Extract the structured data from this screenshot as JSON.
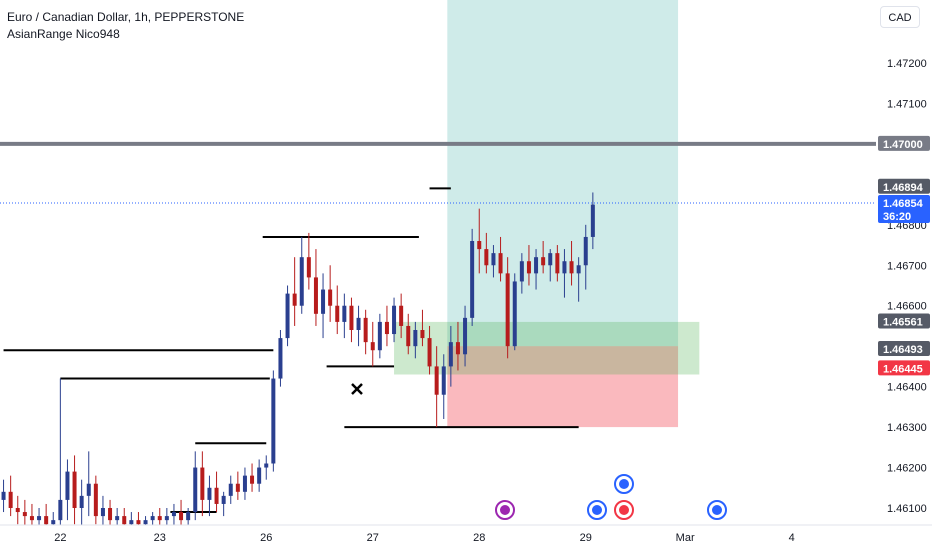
{
  "header": {
    "title": "Euro / Canadian Dollar, 1h, PEPPERSTONE",
    "indicator": "AsianRange Nico948"
  },
  "currency_button": "CAD",
  "colors": {
    "bull": "#2a3f8f",
    "bear": "#b71c1c",
    "target_zone": "#26a69a",
    "stop_zone": "#f23645",
    "accent": "#2962ff"
  },
  "chart_data": {
    "type": "candlestick",
    "title": "Euro / Canadian Dollar, 1h, PEPPERSTONE",
    "ylim": [
      1.4605,
      1.474
    ],
    "y_ticks": [
      "1.47200",
      "1.47100",
      "1.47000",
      "1.46800",
      "1.46700",
      "1.46600",
      "1.46400",
      "1.46300",
      "1.46200",
      "1.46100"
    ],
    "x_ticks": [
      {
        "label": "22",
        "slot": 8
      },
      {
        "label": "23",
        "slot": 22
      },
      {
        "label": "26",
        "slot": 37
      },
      {
        "label": "27",
        "slot": 52
      },
      {
        "label": "28",
        "slot": 67
      },
      {
        "label": "29",
        "slot": 82
      },
      {
        "label": "Mar",
        "slot": 96
      },
      {
        "label": "4",
        "slot": 111
      }
    ],
    "price_badges": [
      {
        "id": "level",
        "label": "1.47000",
        "price": 1.47,
        "bg": "#787b86"
      },
      {
        "id": "prev-high",
        "label": "1.46894",
        "price": 1.46894,
        "bg": "#555a66"
      },
      {
        "id": "last",
        "label": "1.46854",
        "sub": "36:20",
        "price": 1.46854,
        "bg": "#2962ff"
      },
      {
        "id": "target-top",
        "label": "1.46561",
        "price": 1.46561,
        "bg": "#555a66"
      },
      {
        "id": "entry",
        "label": "1.46493",
        "price": 1.46493,
        "bg": "#555a66"
      },
      {
        "id": "stop",
        "label": "1.46445",
        "price": 1.46445,
        "bg": "#f23645"
      }
    ],
    "horizontal_level": 1.47,
    "position": {
      "entry": 1.465,
      "target": 1.474,
      "stop": 1.463,
      "start_slot": 63,
      "end_slot": 95
    },
    "range_lines": [
      {
        "price": 1.4649,
        "from_slot": 0,
        "to_slot": 38
      },
      {
        "price": 1.4642,
        "from_slot": 8,
        "to_slot": 37.5
      },
      {
        "price": 1.4626,
        "from_slot": 27,
        "to_slot": 37
      },
      {
        "price": 1.4609,
        "from_slot": 23.5,
        "to_slot": 30
      },
      {
        "price": 1.4677,
        "from_slot": 36.5,
        "to_slot": 58.5
      },
      {
        "price": 1.4645,
        "from_slot": 45.5,
        "to_slot": 55
      },
      {
        "price": 1.463,
        "from_slot": 48,
        "to_slot": 81
      },
      {
        "price": 1.4689,
        "from_slot": 60,
        "to_slot": 63
      }
    ],
    "candles": [
      [
        1.4612,
        1.4617,
        1.4609,
        1.4614
      ],
      [
        1.4614,
        1.4618,
        1.4608,
        1.461
      ],
      [
        1.461,
        1.4613,
        1.4606,
        1.4609
      ],
      [
        1.4609,
        1.4612,
        1.4605,
        1.4608
      ],
      [
        1.4608,
        1.4611,
        1.4605,
        1.4607
      ],
      [
        1.4607,
        1.461,
        1.4605,
        1.4608
      ],
      [
        1.4608,
        1.4611,
        1.4605,
        1.4606
      ],
      [
        1.4606,
        1.4609,
        1.4605,
        1.4607
      ],
      [
        1.4607,
        1.4642,
        1.4605,
        1.4612
      ],
      [
        1.4612,
        1.4622,
        1.4607,
        1.4619
      ],
      [
        1.4619,
        1.4623,
        1.4606,
        1.461
      ],
      [
        1.461,
        1.4617,
        1.4605,
        1.4613
      ],
      [
        1.4613,
        1.4624,
        1.4608,
        1.4616
      ],
      [
        1.4616,
        1.4618,
        1.4606,
        1.4608
      ],
      [
        1.4608,
        1.4613,
        1.4605,
        1.461
      ],
      [
        1.461,
        1.4612,
        1.4605,
        1.4607
      ],
      [
        1.4607,
        1.461,
        1.4605,
        1.4608
      ],
      [
        1.4608,
        1.461,
        1.4605,
        1.4606
      ],
      [
        1.4606,
        1.4609,
        1.4605,
        1.4607
      ],
      [
        1.4607,
        1.4609,
        1.4605,
        1.4606
      ],
      [
        1.4606,
        1.4608,
        1.4605,
        1.4607
      ],
      [
        1.4607,
        1.4609,
        1.4605,
        1.4608
      ],
      [
        1.4608,
        1.461,
        1.4605,
        1.4607
      ],
      [
        1.4607,
        1.461,
        1.4605,
        1.4608
      ],
      [
        1.4608,
        1.4611,
        1.4605,
        1.4609
      ],
      [
        1.4609,
        1.4612,
        1.4605,
        1.4607
      ],
      [
        1.4607,
        1.461,
        1.4605,
        1.4609
      ],
      [
        1.4609,
        1.4624,
        1.4607,
        1.462
      ],
      [
        1.462,
        1.4624,
        1.4608,
        1.4612
      ],
      [
        1.4612,
        1.4618,
        1.4608,
        1.4615
      ],
      [
        1.4615,
        1.4619,
        1.4609,
        1.4611
      ],
      [
        1.4611,
        1.4614,
        1.4608,
        1.4613
      ],
      [
        1.4613,
        1.4618,
        1.4611,
        1.4616
      ],
      [
        1.4616,
        1.4619,
        1.4612,
        1.4614
      ],
      [
        1.4614,
        1.462,
        1.4612,
        1.4618
      ],
      [
        1.4618,
        1.4621,
        1.4614,
        1.4616
      ],
      [
        1.4616,
        1.4622,
        1.4614,
        1.462
      ],
      [
        1.462,
        1.4623,
        1.4617,
        1.4621
      ],
      [
        1.4621,
        1.4644,
        1.4619,
        1.4642
      ],
      [
        1.4642,
        1.4654,
        1.464,
        1.4652
      ],
      [
        1.4652,
        1.4665,
        1.465,
        1.4663
      ],
      [
        1.4663,
        1.4672,
        1.4655,
        1.466
      ],
      [
        1.466,
        1.4677,
        1.4658,
        1.4672
      ],
      [
        1.4672,
        1.4678,
        1.4664,
        1.4667
      ],
      [
        1.4667,
        1.4674,
        1.4655,
        1.4658
      ],
      [
        1.4658,
        1.4668,
        1.4652,
        1.4664
      ],
      [
        1.4664,
        1.467,
        1.4656,
        1.466
      ],
      [
        1.466,
        1.4665,
        1.4653,
        1.4656
      ],
      [
        1.4656,
        1.4663,
        1.4652,
        1.466
      ],
      [
        1.466,
        1.4662,
        1.4651,
        1.4654
      ],
      [
        1.4654,
        1.466,
        1.465,
        1.4657
      ],
      [
        1.4657,
        1.4659,
        1.4648,
        1.4651
      ],
      [
        1.4651,
        1.4656,
        1.4645,
        1.4649
      ],
      [
        1.4649,
        1.4658,
        1.4647,
        1.4656
      ],
      [
        1.4656,
        1.466,
        1.465,
        1.4653
      ],
      [
        1.4653,
        1.4662,
        1.4651,
        1.466
      ],
      [
        1.466,
        1.4663,
        1.4652,
        1.4655
      ],
      [
        1.4655,
        1.4658,
        1.4648,
        1.465
      ],
      [
        1.465,
        1.4656,
        1.4647,
        1.4654
      ],
      [
        1.4654,
        1.4659,
        1.465,
        1.4652
      ],
      [
        1.4652,
        1.4655,
        1.4643,
        1.4645
      ],
      [
        1.4645,
        1.465,
        1.463,
        1.4638
      ],
      [
        1.4638,
        1.4648,
        1.4632,
        1.4645
      ],
      [
        1.4645,
        1.4655,
        1.464,
        1.4651
      ],
      [
        1.4651,
        1.4656,
        1.4644,
        1.4648
      ],
      [
        1.4648,
        1.466,
        1.4645,
        1.4657
      ],
      [
        1.4657,
        1.4679,
        1.4655,
        1.4676
      ],
      [
        1.4676,
        1.4684,
        1.4668,
        1.4674
      ],
      [
        1.4674,
        1.4678,
        1.4668,
        1.467
      ],
      [
        1.467,
        1.4675,
        1.4667,
        1.4673
      ],
      [
        1.4673,
        1.4677,
        1.4666,
        1.4668
      ],
      [
        1.4668,
        1.4672,
        1.4647,
        1.465
      ],
      [
        1.465,
        1.4668,
        1.4649,
        1.4666
      ],
      [
        1.4666,
        1.4673,
        1.4663,
        1.4671
      ],
      [
        1.4671,
        1.4675,
        1.4665,
        1.4668
      ],
      [
        1.4668,
        1.4674,
        1.4664,
        1.4672
      ],
      [
        1.4672,
        1.4676,
        1.4668,
        1.467
      ],
      [
        1.467,
        1.4674,
        1.4666,
        1.4673
      ],
      [
        1.4673,
        1.4675,
        1.4666,
        1.4668
      ],
      [
        1.4668,
        1.4674,
        1.4662,
        1.4671
      ],
      [
        1.4671,
        1.4676,
        1.4665,
        1.4668
      ],
      [
        1.4668,
        1.4672,
        1.4661,
        1.467
      ],
      [
        1.467,
        1.468,
        1.4664,
        1.4677
      ],
      [
        1.4677,
        1.4688,
        1.4674,
        1.4685
      ]
    ]
  }
}
